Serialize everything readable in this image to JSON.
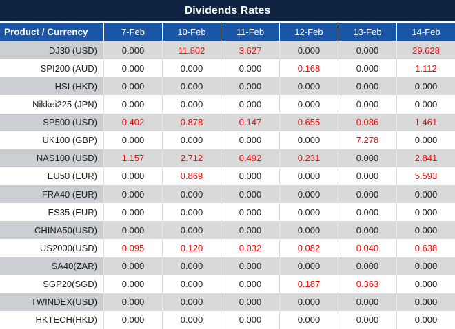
{
  "title": "Dividends Rates",
  "colors": {
    "title_bg": "#0E2341",
    "header_bg": "#1B56A6",
    "header_text": "#FFFFFF",
    "stripe_label_bg": "#CBCED2",
    "stripe_value_bg": "#D9D9D9",
    "plain_row_bg": "#FFFFFF",
    "zero_value_text": "#1E1E1E",
    "nonzero_value_text": "#FF0000"
  },
  "chart_data": {
    "type": "table",
    "title": "Dividends Rates",
    "columns": [
      "Product / Currency",
      "7-Feb",
      "10-Feb",
      "11-Feb",
      "12-Feb",
      "13-Feb",
      "14-Feb"
    ],
    "rows": [
      [
        "DJ30 (USD)",
        "0.000",
        "11.802",
        "3.627",
        "0.000",
        "0.000",
        "29.628"
      ],
      [
        "SPI200 (AUD)",
        "0.000",
        "0.000",
        "0.000",
        "0.168",
        "0.000",
        "1.112"
      ],
      [
        "HSI (HKD)",
        "0.000",
        "0.000",
        "0.000",
        "0.000",
        "0.000",
        "0.000"
      ],
      [
        "Nikkei225 (JPN)",
        "0.000",
        "0.000",
        "0.000",
        "0.000",
        "0.000",
        "0.000"
      ],
      [
        "SP500 (USD)",
        "0.402",
        "0.878",
        "0.147",
        "0.655",
        "0.086",
        "1.461"
      ],
      [
        "UK100 (GBP)",
        "0.000",
        "0.000",
        "0.000",
        "0.000",
        "7.278",
        "0.000"
      ],
      [
        "NAS100 (USD)",
        "1.157",
        "2.712",
        "0.492",
        "0.231",
        "0.000",
        "2.841"
      ],
      [
        "EU50 (EUR)",
        "0.000",
        "0.869",
        "0.000",
        "0.000",
        "0.000",
        "5.593"
      ],
      [
        "FRA40 (EUR)",
        "0.000",
        "0.000",
        "0.000",
        "0.000",
        "0.000",
        "0.000"
      ],
      [
        "ES35 (EUR)",
        "0.000",
        "0.000",
        "0.000",
        "0.000",
        "0.000",
        "0.000"
      ],
      [
        "CHINA50(USD)",
        "0.000",
        "0.000",
        "0.000",
        "0.000",
        "0.000",
        "0.000"
      ],
      [
        "US2000(USD)",
        "0.095",
        "0.120",
        "0.032",
        "0.082",
        "0.040",
        "0.638"
      ],
      [
        "SA40(ZAR)",
        "0.000",
        "0.000",
        "0.000",
        "0.000",
        "0.000",
        "0.000"
      ],
      [
        "SGP20(SGD)",
        "0.000",
        "0.000",
        "0.000",
        "0.187",
        "0.363",
        "0.000"
      ],
      [
        "TWINDEX(USD)",
        "0.000",
        "0.000",
        "0.000",
        "0.000",
        "0.000",
        "0.000"
      ],
      [
        "HKTECH(HKD)",
        "0.000",
        "0.000",
        "0.000",
        "0.000",
        "0.000",
        "0.000"
      ]
    ]
  }
}
